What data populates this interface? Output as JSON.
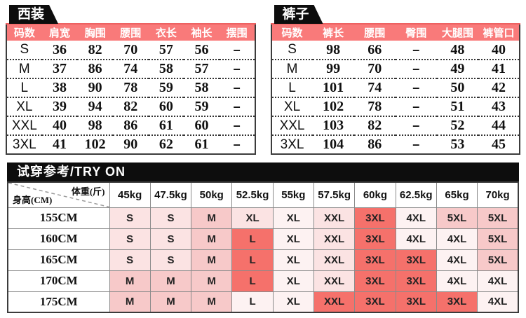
{
  "colors": {
    "header_bg": "#f97a7a",
    "tab_bg": "#0d0d0d",
    "cell_levels": {
      "w": "#fdf2f2",
      "p1": "#fbe3e3",
      "p2": "#f7c9c9",
      "r": "#f5716b"
    }
  },
  "suit": {
    "title": "西装",
    "headers": [
      "码数",
      "肩宽",
      "胸围",
      "腰围",
      "衣长",
      "袖长",
      "摆围"
    ],
    "rows": [
      [
        "S",
        "36",
        "82",
        "70",
        "57",
        "56",
        "–"
      ],
      [
        "M",
        "37",
        "86",
        "74",
        "58",
        "57",
        "–"
      ],
      [
        "L",
        "38",
        "90",
        "78",
        "59",
        "58",
        "–"
      ],
      [
        "XL",
        "39",
        "94",
        "82",
        "60",
        "59",
        "–"
      ],
      [
        "XXL",
        "40",
        "98",
        "86",
        "61",
        "60",
        "–"
      ],
      [
        "3XL",
        "41",
        "102",
        "90",
        "62",
        "61",
        "–"
      ]
    ]
  },
  "pants": {
    "title": "裤子",
    "headers": [
      "码数",
      "裤长",
      "腰围",
      "臀围",
      "大腿围",
      "裤管口"
    ],
    "rows": [
      [
        "S",
        "98",
        "66",
        "–",
        "48",
        "40"
      ],
      [
        "M",
        "99",
        "70",
        "–",
        "49",
        "41"
      ],
      [
        "L",
        "101",
        "74",
        "–",
        "50",
        "42"
      ],
      [
        "XL",
        "102",
        "78",
        "–",
        "51",
        "43"
      ],
      [
        "XXL",
        "103",
        "82",
        "–",
        "52",
        "44"
      ],
      [
        "3XL",
        "104",
        "86",
        "–",
        "53",
        "45"
      ]
    ]
  },
  "tryon": {
    "title": "试穿参考/TRY ON",
    "corner_weight_label": "体重(斤)",
    "corner_height_label": "身高(CM)",
    "weights": [
      "45kg",
      "47.5kg",
      "50kg",
      "52.5kg",
      "55kg",
      "57.5kg",
      "60kg",
      "62.5kg",
      "65kg",
      "70kg"
    ],
    "rows": [
      {
        "height": "155CM",
        "cells": [
          [
            "S",
            "p1"
          ],
          [
            "S",
            "p1"
          ],
          [
            "M",
            "p2"
          ],
          [
            "XL",
            "p1"
          ],
          [
            "XL",
            "w"
          ],
          [
            "XXL",
            "p1"
          ],
          [
            "3XL",
            "r"
          ],
          [
            "4XL",
            "w"
          ],
          [
            "5XL",
            "p2"
          ],
          [
            "5XL",
            "p2"
          ]
        ]
      },
      {
        "height": "160CM",
        "cells": [
          [
            "S",
            "p1"
          ],
          [
            "S",
            "p1"
          ],
          [
            "M",
            "p2"
          ],
          [
            "L",
            "r"
          ],
          [
            "XL",
            "w"
          ],
          [
            "XXL",
            "p1"
          ],
          [
            "3XL",
            "r"
          ],
          [
            "4XL",
            "w"
          ],
          [
            "4XL",
            "w"
          ],
          [
            "5XL",
            "p2"
          ]
        ]
      },
      {
        "height": "165CM",
        "cells": [
          [
            "S",
            "p1"
          ],
          [
            "S",
            "p1"
          ],
          [
            "M",
            "p2"
          ],
          [
            "L",
            "r"
          ],
          [
            "XL",
            "w"
          ],
          [
            "XXL",
            "p1"
          ],
          [
            "3XL",
            "r"
          ],
          [
            "3XL",
            "r"
          ],
          [
            "4XL",
            "w"
          ],
          [
            "5XL",
            "p2"
          ]
        ]
      },
      {
        "height": "170CM",
        "cells": [
          [
            "M",
            "p2"
          ],
          [
            "M",
            "p2"
          ],
          [
            "M",
            "p2"
          ],
          [
            "L",
            "r"
          ],
          [
            "XL",
            "w"
          ],
          [
            "XXL",
            "p1"
          ],
          [
            "3XL",
            "r"
          ],
          [
            "3XL",
            "r"
          ],
          [
            "4XL",
            "w"
          ],
          [
            "4XL",
            "w"
          ]
        ]
      },
      {
        "height": "175CM",
        "cells": [
          [
            "M",
            "p2"
          ],
          [
            "M",
            "p2"
          ],
          [
            "M",
            "p2"
          ],
          [
            "L",
            "w"
          ],
          [
            "XL",
            "w"
          ],
          [
            "XXL",
            "r"
          ],
          [
            "3XL",
            "r"
          ],
          [
            "3XL",
            "r"
          ],
          [
            "3XL",
            "r"
          ],
          [
            "4XL",
            "w"
          ]
        ]
      }
    ]
  }
}
